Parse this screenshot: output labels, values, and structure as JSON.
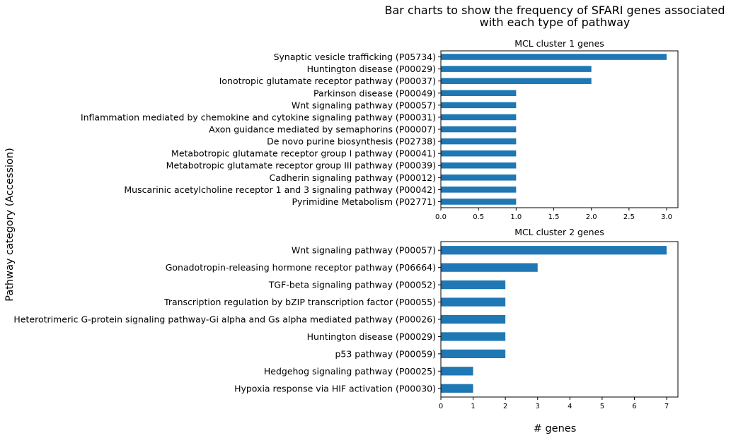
{
  "figure": {
    "title_lines": [
      "Bar charts to show the frequency of SFARI genes associated",
      "with each type of pathway"
    ],
    "ylabel": "Pathway category (Accession)",
    "xlabel": "# genes"
  },
  "chart_data": [
    {
      "type": "bar",
      "orientation": "horizontal",
      "title": "MCL cluster 1 genes",
      "categories": [
        "Synaptic vesicle trafficking (P05734)",
        "Huntington disease (P00029)",
        "Ionotropic glutamate receptor pathway (P00037)",
        "Parkinson disease (P00049)",
        "Wnt signaling pathway (P00057)",
        "Inflammation mediated by chemokine and cytokine signaling pathway (P00031)",
        "Axon guidance mediated by semaphorins (P00007)",
        "De novo purine biosynthesis (P02738)",
        "Metabotropic glutamate receptor group I pathway (P00041)",
        "Metabotropic glutamate receptor group III pathway (P00039)",
        "Cadherin signaling pathway (P00012)",
        "Muscarinic acetylcholine receptor 1 and 3 signaling pathway (P00042)",
        "Pyrimidine Metabolism (P02771)"
      ],
      "values": [
        3,
        2,
        2,
        1,
        1,
        1,
        1,
        1,
        1,
        1,
        1,
        1,
        1
      ],
      "xlim": [
        0,
        3.15
      ],
      "xticks": [
        0,
        0.5,
        1,
        1.5,
        2,
        2.5,
        3
      ],
      "xtick_labels": [
        "0.0",
        "0.5",
        "1.0",
        "1.5",
        "2.0",
        "2.5",
        "3.0"
      ],
      "bar_color": "#1f77b4",
      "grid": false
    },
    {
      "type": "bar",
      "orientation": "horizontal",
      "title": "MCL cluster 2 genes",
      "categories": [
        "Wnt signaling pathway (P00057)",
        "Gonadotropin-releasing hormone receptor pathway (P06664)",
        "TGF-beta signaling pathway (P00052)",
        "Transcription regulation by bZIP transcription factor (P00055)",
        "Heterotrimeric G-protein signaling pathway-Gi alpha and Gs alpha mediated pathway (P00026)",
        "Huntington disease (P00029)",
        "p53 pathway (P00059)",
        "Hedgehog signaling pathway (P00025)",
        "Hypoxia response via HIF activation (P00030)"
      ],
      "values": [
        7,
        3,
        2,
        2,
        2,
        2,
        2,
        1,
        1
      ],
      "xlim": [
        0,
        7.35
      ],
      "xticks": [
        0,
        1,
        2,
        3,
        4,
        5,
        6,
        7
      ],
      "xtick_labels": [
        "0",
        "1",
        "2",
        "3",
        "4",
        "5",
        "6",
        "7"
      ],
      "bar_color": "#1f77b4",
      "grid": false
    }
  ]
}
